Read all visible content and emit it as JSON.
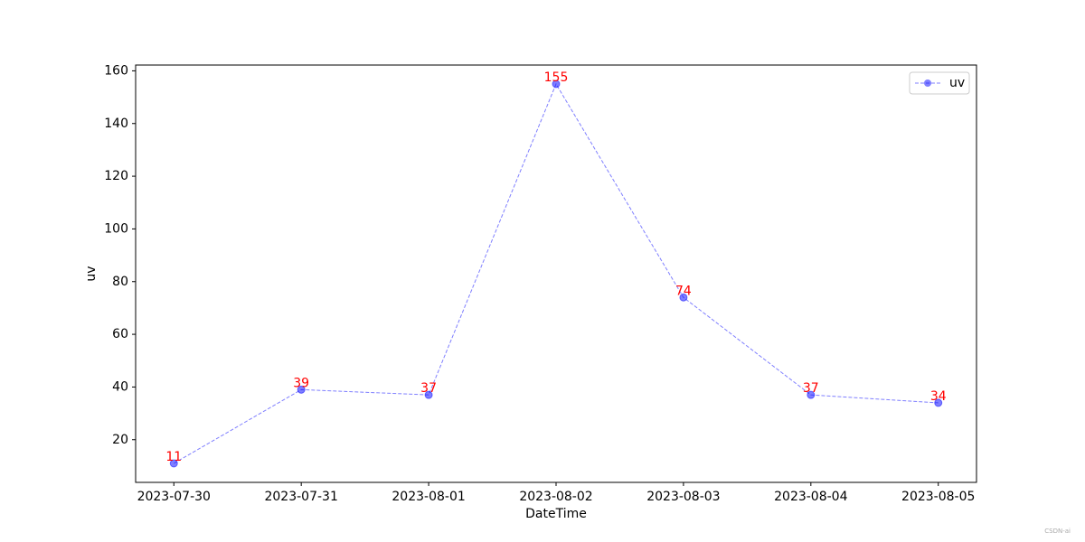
{
  "chart_data": {
    "type": "line",
    "x_label": "DateTime",
    "y_label": "uv",
    "categories": [
      "2023-07-30",
      "2023-07-31",
      "2023-08-01",
      "2023-08-02",
      "2023-08-03",
      "2023-08-04",
      "2023-08-05"
    ],
    "series": [
      {
        "name": "uv",
        "color": "#0000ff",
        "values": [
          11,
          39,
          37,
          155,
          74,
          37,
          34
        ]
      }
    ],
    "label_color": "#ff0000",
    "ylim": [
      3.8,
      162.2
    ],
    "yticks": [
      20,
      40,
      60,
      80,
      100,
      120,
      140,
      160
    ],
    "legend": "upper right",
    "watermark": "CSDN-ai"
  }
}
